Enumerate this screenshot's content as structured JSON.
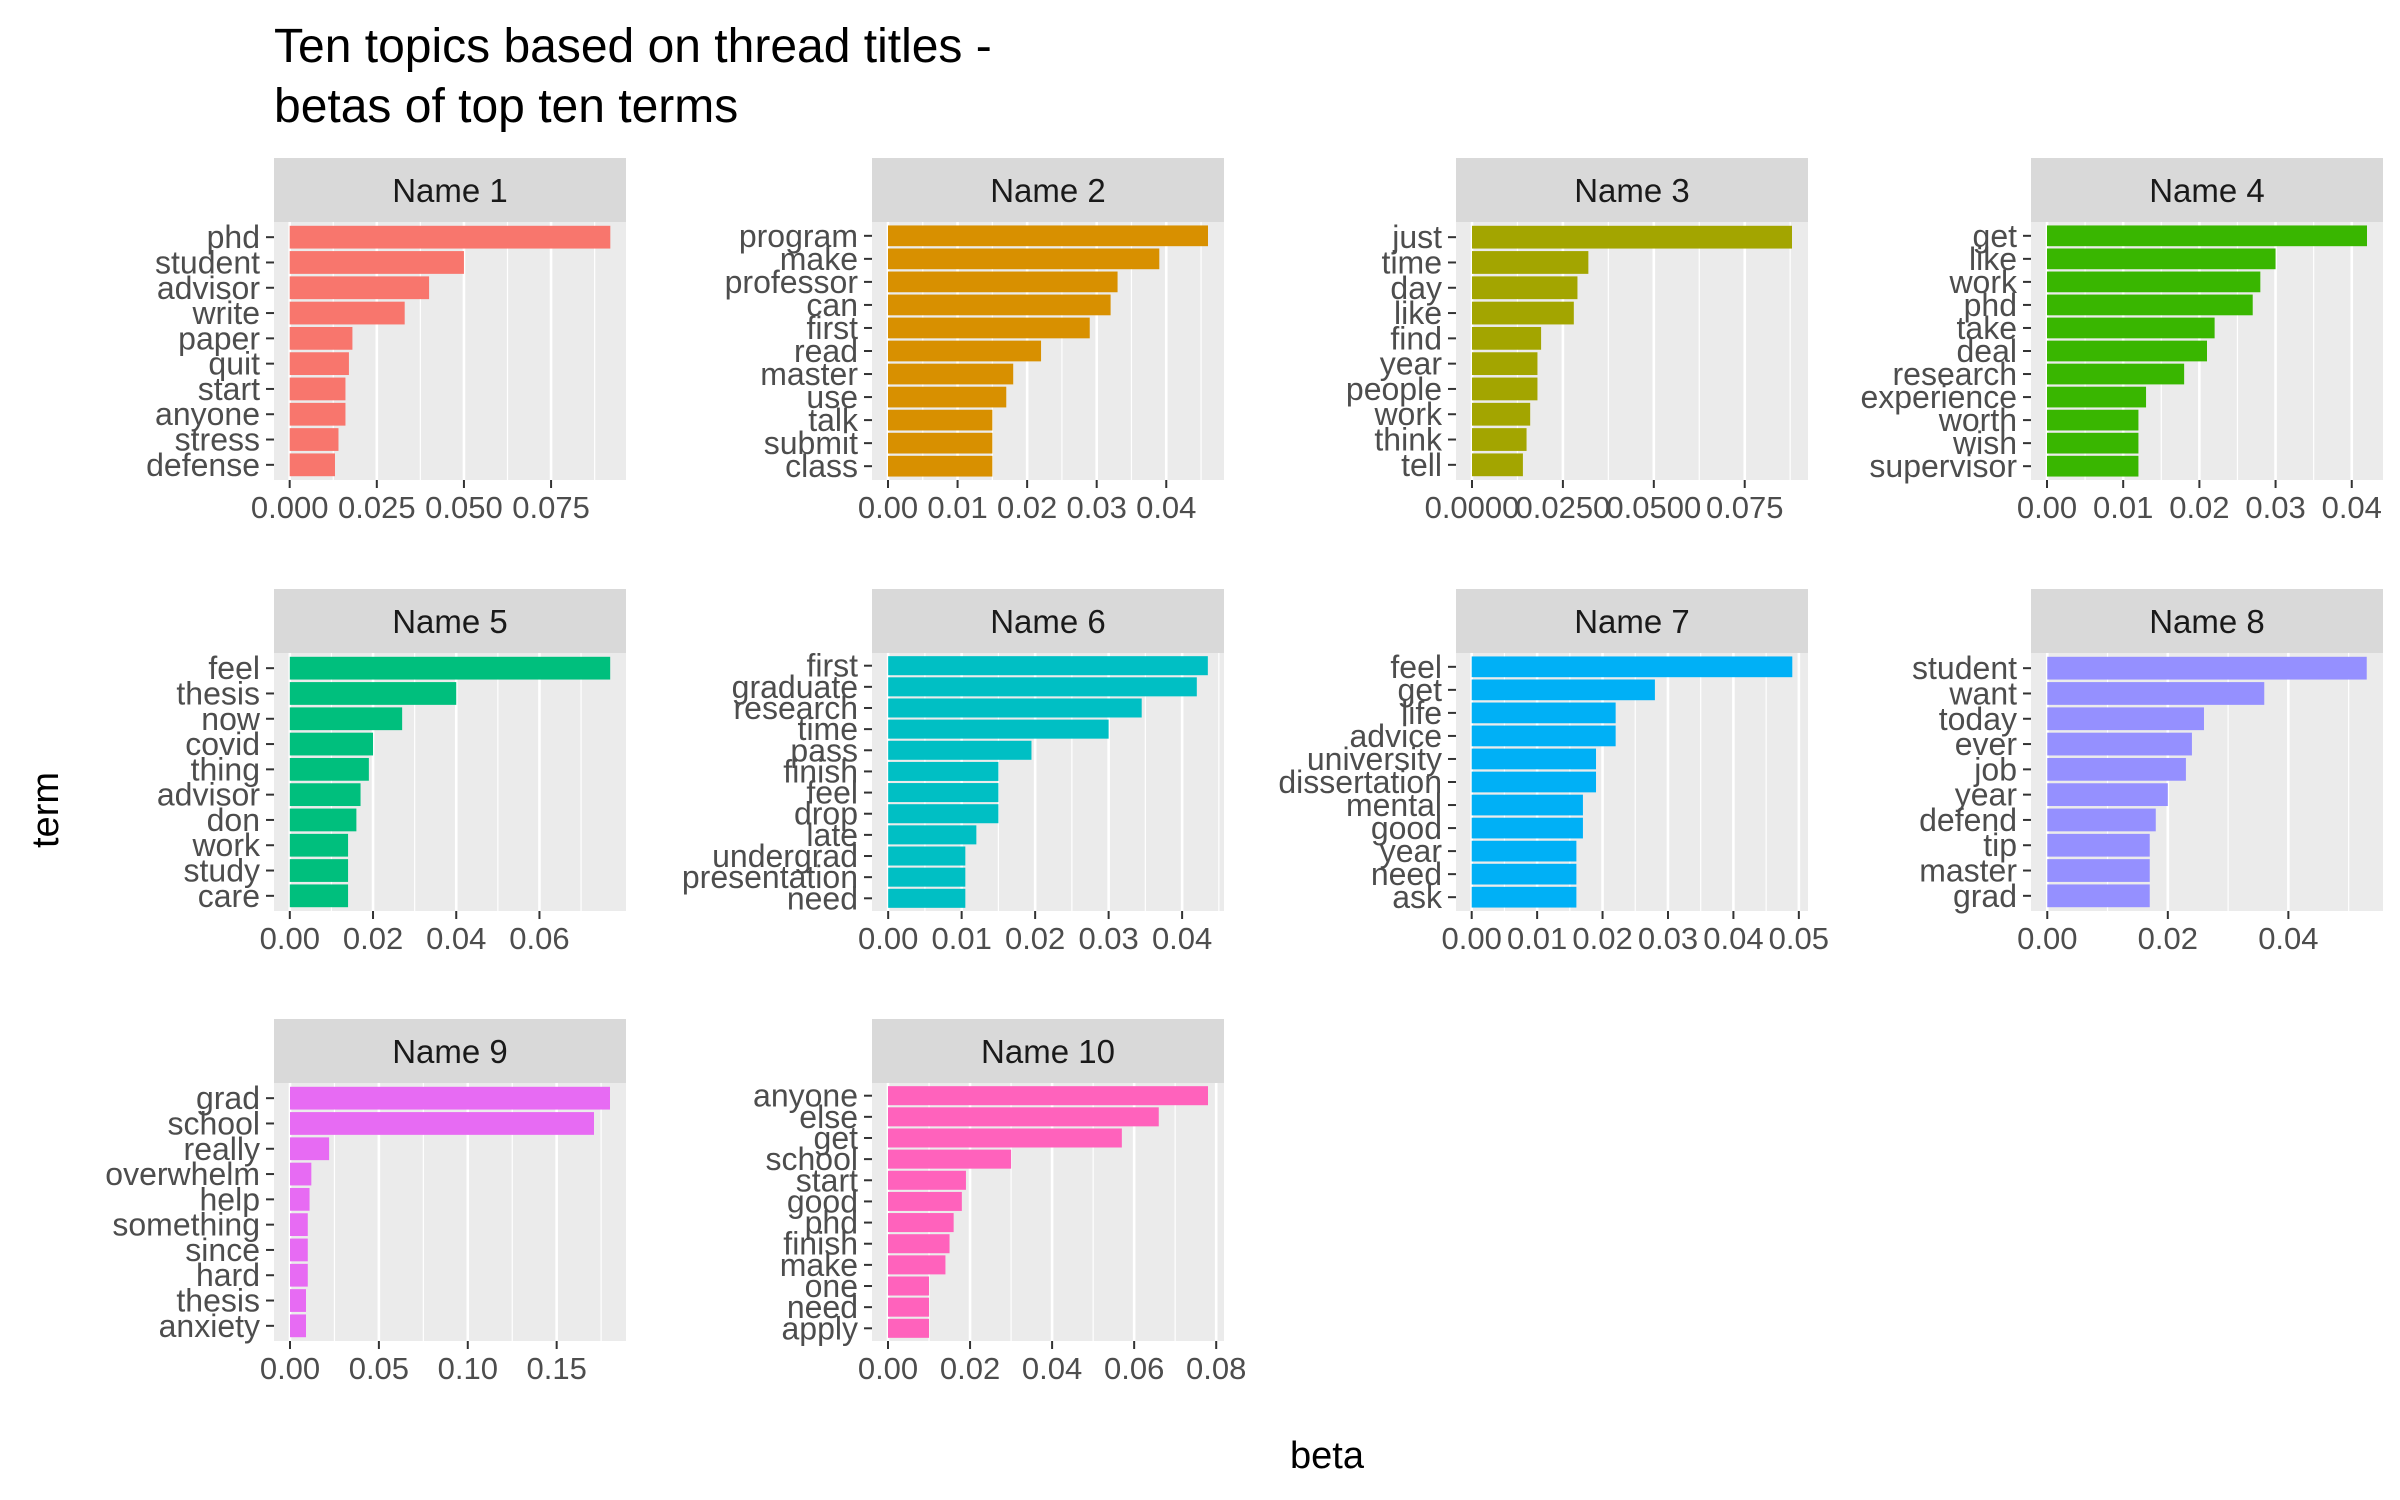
{
  "title_line1": "Ten topics based on thread titles -",
  "title_line2": "betas of top ten terms",
  "chart_data": {
    "type": "bar",
    "orientation": "horizontal",
    "facet_layout": "4 columns x 3 rows, independent x scales",
    "xlabel": "beta",
    "ylabel": "term",
    "grid": true,
    "legend": "none",
    "facets": [
      {
        "name": "Name 1",
        "color": "#F8766D",
        "terms": [
          "phd",
          "student",
          "advisor",
          "write",
          "paper",
          "quit",
          "start",
          "anyone",
          "stress",
          "defense"
        ],
        "values": [
          0.092,
          0.05,
          0.04,
          0.033,
          0.018,
          0.017,
          0.016,
          0.016,
          0.014,
          0.013
        ],
        "xlim": [
          -0.0045,
          0.0965
        ],
        "ticks": [
          0,
          0.025,
          0.05,
          0.075
        ],
        "tick_labels": [
          "0.000",
          "0.025",
          "0.050",
          "0.075"
        ]
      },
      {
        "name": "Name 2",
        "color": "#D89000",
        "terms": [
          "program",
          "make",
          "professor",
          "can",
          "first",
          "read",
          "master",
          "use",
          "talk",
          "submit",
          "class"
        ],
        "values": [
          0.046,
          0.039,
          0.033,
          0.032,
          0.029,
          0.022,
          0.018,
          0.017,
          0.015,
          0.015,
          0.015
        ],
        "xlim": [
          -0.0023,
          0.0483
        ],
        "ticks": [
          0,
          0.01,
          0.02,
          0.03,
          0.04
        ],
        "tick_labels": [
          "0.00",
          "0.01",
          "0.02",
          "0.03",
          "0.04"
        ]
      },
      {
        "name": "Name 3",
        "color": "#A3A500",
        "terms": [
          "just",
          "time",
          "day",
          "like",
          "find",
          "year",
          "people",
          "work",
          "think",
          "tell"
        ],
        "values": [
          0.088,
          0.032,
          0.029,
          0.028,
          0.019,
          0.018,
          0.018,
          0.016,
          0.015,
          0.014
        ],
        "xlim": [
          -0.0044,
          0.0924
        ],
        "ticks": [
          0,
          0.025,
          0.05,
          0.075
        ],
        "tick_labels": [
          "0.0000",
          "0.0250",
          "0.0500",
          "0.075"
        ]
      },
      {
        "name": "Name 4",
        "color": "#39B600",
        "terms": [
          "get",
          "like",
          "work",
          "phd",
          "take",
          "deal",
          "research",
          "experience",
          "worth",
          "wish",
          "supervisor"
        ],
        "values": [
          0.042,
          0.03,
          0.028,
          0.027,
          0.022,
          0.021,
          0.018,
          0.013,
          0.012,
          0.012,
          0.012
        ],
        "xlim": [
          -0.0021,
          0.0441
        ],
        "ticks": [
          0,
          0.01,
          0.02,
          0.03,
          0.04
        ],
        "tick_labels": [
          "0.00",
          "0.01",
          "0.02",
          "0.03",
          "0.04"
        ]
      },
      {
        "name": "Name 5",
        "color": "#00BF7D",
        "terms": [
          "feel",
          "thesis",
          "now",
          "covid",
          "thing",
          "advisor",
          "don",
          "work",
          "study",
          "care"
        ],
        "values": [
          0.077,
          0.04,
          0.027,
          0.02,
          0.019,
          0.017,
          0.016,
          0.014,
          0.014,
          0.014
        ],
        "xlim": [
          -0.0038,
          0.0808
        ],
        "ticks": [
          0,
          0.02,
          0.04,
          0.06
        ],
        "tick_labels": [
          "0.00",
          "0.02",
          "0.04",
          "0.06"
        ]
      },
      {
        "name": "Name 6",
        "color": "#00BFC4",
        "terms": [
          "first",
          "graduate",
          "research",
          "time",
          "pass",
          "finish",
          "feel",
          "drop",
          "late",
          "undergrad",
          "presentation",
          "need"
        ],
        "values": [
          0.0435,
          0.042,
          0.0345,
          0.03,
          0.0195,
          0.015,
          0.015,
          0.015,
          0.012,
          0.0105,
          0.0105,
          0.0105
        ],
        "xlim": [
          -0.0022,
          0.0457
        ],
        "ticks": [
          0,
          0.01,
          0.02,
          0.03,
          0.04
        ],
        "tick_labels": [
          "0.00",
          "0.01",
          "0.02",
          "0.03",
          "0.04"
        ]
      },
      {
        "name": "Name 7",
        "color": "#00B0F6",
        "terms": [
          "feel",
          "get",
          "life",
          "advice",
          "university",
          "dissertation",
          "mental",
          "good",
          "year",
          "need",
          "ask"
        ],
        "values": [
          0.049,
          0.028,
          0.022,
          0.022,
          0.019,
          0.019,
          0.017,
          0.017,
          0.016,
          0.016,
          0.016
        ],
        "xlim": [
          -0.0024,
          0.0514
        ],
        "ticks": [
          0,
          0.01,
          0.02,
          0.03,
          0.04,
          0.05
        ],
        "tick_labels": [
          "0.00",
          "0.01",
          "0.02",
          "0.03",
          "0.04",
          "0.05"
        ]
      },
      {
        "name": "Name 8",
        "color": "#9590FF",
        "terms": [
          "student",
          "want",
          "today",
          "ever",
          "job",
          "year",
          "defend",
          "tip",
          "master",
          "grad"
        ],
        "values": [
          0.053,
          0.036,
          0.026,
          0.024,
          0.023,
          0.02,
          0.018,
          0.017,
          0.017,
          0.017
        ],
        "xlim": [
          -0.0027,
          0.0557
        ],
        "ticks": [
          0,
          0.02,
          0.04
        ],
        "tick_labels": [
          "0.00",
          "0.02",
          "0.04"
        ]
      },
      {
        "name": "Name 9",
        "color": "#E76BF3",
        "terms": [
          "grad",
          "school",
          "really",
          "overwhelm",
          "help",
          "something",
          "since",
          "hard",
          "thesis",
          "anxiety"
        ],
        "values": [
          0.18,
          0.171,
          0.022,
          0.012,
          0.011,
          0.01,
          0.01,
          0.01,
          0.009,
          0.009
        ],
        "xlim": [
          -0.009,
          0.189
        ],
        "ticks": [
          0,
          0.05,
          0.1,
          0.15
        ],
        "tick_labels": [
          "0.00",
          "0.05",
          "0.10",
          "0.15"
        ]
      },
      {
        "name": "Name 10",
        "color": "#FF62BC",
        "terms": [
          "anyone",
          "else",
          "get",
          "school",
          "start",
          "good",
          "phd",
          "finish",
          "make",
          "one",
          "need",
          "apply"
        ],
        "values": [
          0.078,
          0.066,
          0.057,
          0.03,
          0.019,
          0.018,
          0.016,
          0.015,
          0.014,
          0.01,
          0.01,
          0.01
        ],
        "xlim": [
          -0.0039,
          0.0819
        ],
        "ticks": [
          0,
          0.02,
          0.04,
          0.06,
          0.08
        ],
        "tick_labels": [
          "0.00",
          "0.02",
          "0.04",
          "0.06",
          "0.08"
        ]
      }
    ]
  }
}
